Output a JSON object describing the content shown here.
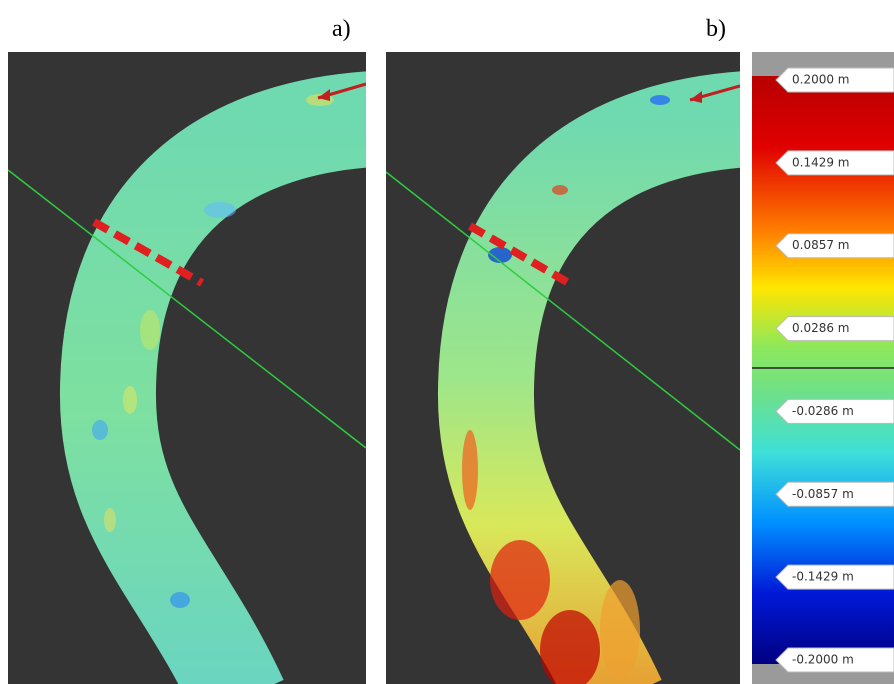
{
  "panels": [
    {
      "label": "a)"
    },
    {
      "label": "b)"
    }
  ],
  "scale": {
    "labels": [
      "0.2000 m",
      "0.1429 m",
      "0.0857 m",
      "0.0286 m",
      "-0.0286 m",
      "-0.0857 m",
      "-0.1429 m",
      "-0.2000 m"
    ]
  }
}
